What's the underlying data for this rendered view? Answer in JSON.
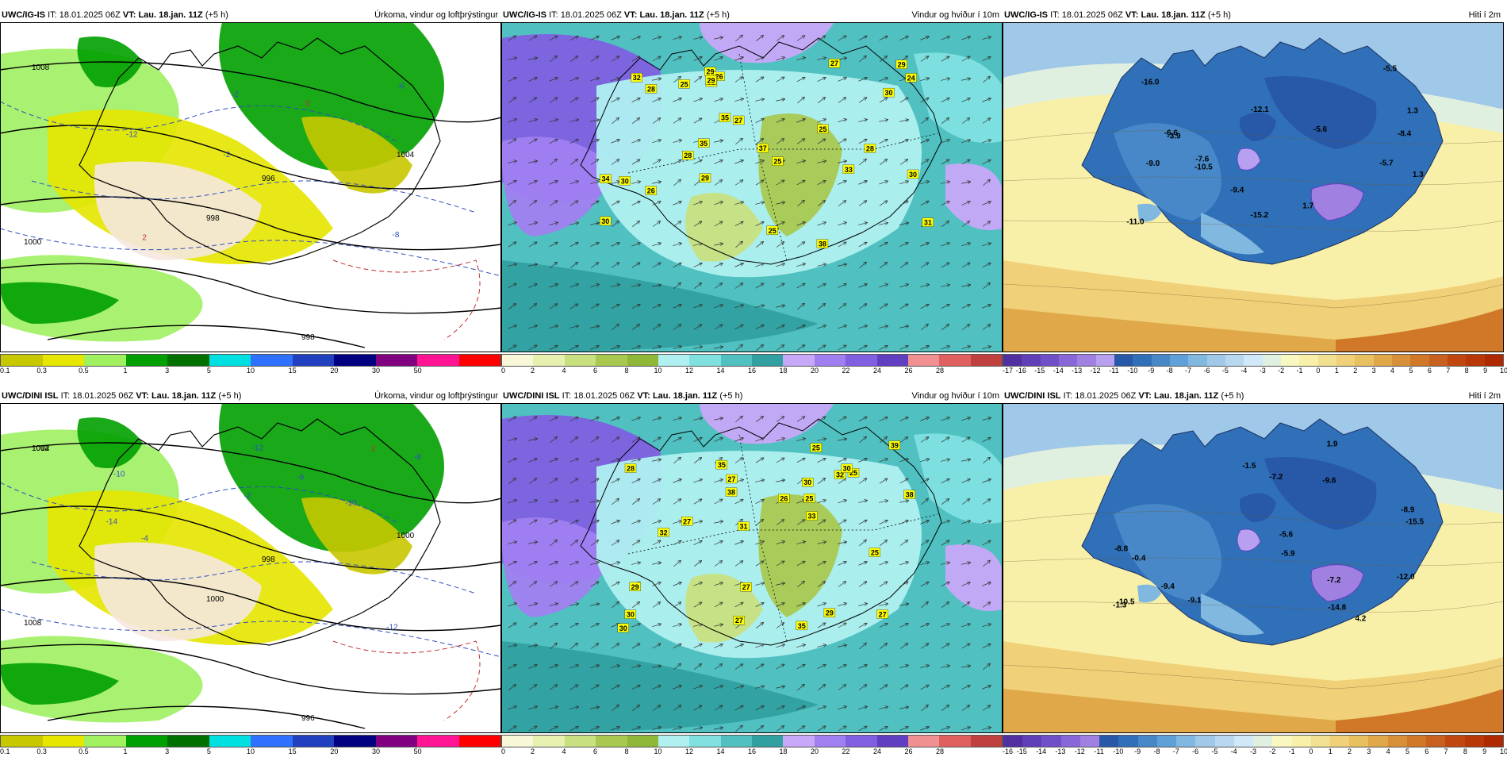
{
  "panels": [
    {
      "id": "ig-precip",
      "model": "UWC/IG-IS",
      "it_label": "IT:",
      "it_value": "18.01.2025 06Z",
      "vt_label": "VT:",
      "vt_value": "Lau. 18.jan. 11Z",
      "lead": "(+5 h)",
      "title": "Úrkoma, vindur og loftþrýstingur",
      "type": "precip",
      "colorbar_colors": [
        "#c8c800",
        "#e6e600",
        "#a0f060",
        "#00a000",
        "#007000",
        "#00e0e0",
        "#3070ff",
        "#2040c0",
        "#000080",
        "#800080",
        "#ff1493",
        "#ff0000"
      ],
      "colorbar_ticks": [
        "0.1",
        "0.3",
        "0.5",
        "1",
        "3",
        "5",
        "10",
        "15",
        "20",
        "30",
        "50"
      ],
      "isobar_labels": [
        "1008",
        "1000",
        "998",
        "996",
        "998",
        "1004"
      ],
      "isotherm_labels": [
        "-8",
        "-12",
        "-6",
        "-2",
        "0",
        "2",
        "-2"
      ]
    },
    {
      "id": "ig-wind",
      "model": "UWC/IG-IS",
      "it_label": "IT:",
      "it_value": "18.01.2025 06Z",
      "vt_label": "VT:",
      "vt_value": "Lau. 18.jan. 11Z",
      "lead": "(+5 h)",
      "title": "Vindur og hviður í 10m",
      "type": "wind",
      "colorbar_colors": [
        "#f8f8d8",
        "#e8f0b0",
        "#c8e080",
        "#a8c850",
        "#90b838",
        "#b0f0f0",
        "#80e0e0",
        "#50c0c0",
        "#30a0a0",
        "#c8a8f8",
        "#a080f0",
        "#8060e0",
        "#6040c0",
        "#f09090",
        "#e06060",
        "#c04040"
      ],
      "colorbar_ticks": [
        "0",
        "2",
        "4",
        "6",
        "8",
        "10",
        "12",
        "14",
        "16",
        "18",
        "20",
        "22",
        "24",
        "26",
        "28"
      ],
      "gust_values": [
        "37",
        "34",
        "32",
        "35",
        "38",
        "30",
        "30",
        "31",
        "33",
        "29",
        "29",
        "30",
        "35",
        "30",
        "26",
        "27",
        "25",
        "29",
        "28",
        "25",
        "24",
        "26",
        "28",
        "31",
        "29",
        "27",
        "28",
        "25",
        "25"
      ]
    },
    {
      "id": "ig-temp",
      "model": "UWC/IG-IS",
      "it_label": "IT:",
      "it_value": "18.01.2025 06Z",
      "vt_label": "VT:",
      "vt_value": "Lau. 18.jan. 11Z",
      "lead": "(+5 h)",
      "title": "Hiti í 2m",
      "type": "temp",
      "colorbar_colors": [
        "#5030a0",
        "#6040b8",
        "#7050c8",
        "#8868d8",
        "#a080e0",
        "#b8a0f0",
        "#2858a8",
        "#3070b8",
        "#4888c8",
        "#60a0d8",
        "#80b8e0",
        "#a0c8e8",
        "#b8d8f0",
        "#d0e8f8",
        "#e0f0e0",
        "#f8f8c0",
        "#f8f0a8",
        "#f0e090",
        "#f0d078",
        "#e8c060",
        "#e0a848",
        "#d89038",
        "#d07828",
        "#c86020",
        "#c04810",
        "#b83808",
        "#b02800"
      ],
      "colorbar_ticks": [
        "-17",
        "-16",
        "-15",
        "-14",
        "-13",
        "-12",
        "-11",
        "-10",
        "-9",
        "-8",
        "-7",
        "-6",
        "-5",
        "-4",
        "-3",
        "-2",
        "-1",
        "0",
        "1",
        "2",
        "3",
        "4",
        "5",
        "6",
        "7",
        "8",
        "9",
        "10"
      ],
      "temp_values": [
        "-9.4",
        "-10.5",
        "-5.7",
        "-12.1",
        "-9.0",
        "-7.6",
        "-6.6",
        "-11.0",
        "1.3",
        "-8.4",
        "-15.2",
        "-16.0",
        "1.3",
        "1.7",
        "-3.9",
        "-5.6",
        "-5.5"
      ]
    },
    {
      "id": "dini-precip",
      "model": "UWC/DINI ISL",
      "it_label": "IT:",
      "it_value": "18.01.2025 06Z",
      "vt_label": "VT:",
      "vt_value": "Lau. 18.jan. 11Z",
      "lead": "(+5 h)",
      "title": "Úrkoma, vindur og loftþrýstingur",
      "type": "precip",
      "colorbar_colors": [
        "#c8c800",
        "#e6e600",
        "#a0f060",
        "#00a000",
        "#007000",
        "#00e0e0",
        "#3070ff",
        "#2040c0",
        "#000080",
        "#800080",
        "#ff1493",
        "#ff0000"
      ],
      "colorbar_ticks": [
        "0.1",
        "0.3",
        "0.5",
        "1",
        "3",
        "5",
        "10",
        "15",
        "20",
        "30",
        "50"
      ],
      "isobar_labels": [
        "1012",
        "1008",
        "1000",
        "998",
        "996",
        "1000",
        "1004"
      ],
      "isotherm_labels": [
        "-14",
        "-12",
        "-10",
        "-8",
        "-10",
        "-12",
        "-4",
        "-6",
        "-2",
        "2"
      ]
    },
    {
      "id": "dini-wind",
      "model": "UWC/DINI ISL",
      "it_label": "IT:",
      "it_value": "18.01.2025 06Z",
      "vt_label": "VT:",
      "vt_value": "Lau. 18.jan. 11Z",
      "lead": "(+5 h)",
      "title": "Vindur og hviður í 10m",
      "type": "wind",
      "colorbar_colors": [
        "#f8f8d8",
        "#e8f0b0",
        "#c8e080",
        "#a8c850",
        "#90b838",
        "#b0f0f0",
        "#80e0e0",
        "#50c0c0",
        "#30a0a0",
        "#c8a8f8",
        "#a080f0",
        "#8060e0",
        "#6040c0",
        "#f09090",
        "#e06060",
        "#c04040"
      ],
      "colorbar_ticks": [
        "0",
        "2",
        "4",
        "6",
        "8",
        "10",
        "12",
        "14",
        "16",
        "18",
        "20",
        "22",
        "24",
        "26",
        "28"
      ],
      "gust_values": [
        "35",
        "38",
        "38",
        "39",
        "30",
        "30",
        "32",
        "29",
        "28",
        "27",
        "25",
        "33",
        "35",
        "31",
        "25",
        "25",
        "27",
        "27",
        "32",
        "30",
        "27",
        "30",
        "29",
        "26",
        "27",
        "25"
      ]
    },
    {
      "id": "dini-temp",
      "model": "UWC/DINI ISL",
      "it_label": "IT:",
      "it_value": "18.01.2025 06Z",
      "vt_label": "VT:",
      "vt_value": "Lau. 18.jan. 11Z",
      "lead": "(+5 h)",
      "title": "Hiti í 2m",
      "type": "temp",
      "colorbar_colors": [
        "#5030a0",
        "#6040b8",
        "#7050c8",
        "#8868d8",
        "#a080e0",
        "#2858a8",
        "#3070b8",
        "#4888c8",
        "#60a0d8",
        "#80b8e0",
        "#a0c8e8",
        "#b8d8f0",
        "#d0e8f8",
        "#e0f0e0",
        "#f8f8c0",
        "#f8f0a8",
        "#f0e090",
        "#f0d078",
        "#e8c060",
        "#e0a848",
        "#d89038",
        "#d07828",
        "#c86020",
        "#c04810",
        "#b83808",
        "#b02800"
      ],
      "colorbar_ticks": [
        "-16",
        "-15",
        "-14",
        "-13",
        "-12",
        "-11",
        "-10",
        "-9",
        "-8",
        "-7",
        "-6",
        "-5",
        "-4",
        "-3",
        "-2",
        "-1",
        "0",
        "1",
        "2",
        "3",
        "4",
        "5",
        "6",
        "7",
        "8",
        "9",
        "10"
      ],
      "temp_values": [
        "-7.2",
        "-9.6",
        "-7.2",
        "-10.5",
        "-5.6",
        "-8.8",
        "-12.0",
        "-9.4",
        "-9.1",
        "-1.5",
        "-8.9",
        "-14.8",
        "-15.5",
        "-0.4",
        "1.9",
        "4.2",
        "-1.3",
        "-5.9"
      ]
    }
  ]
}
